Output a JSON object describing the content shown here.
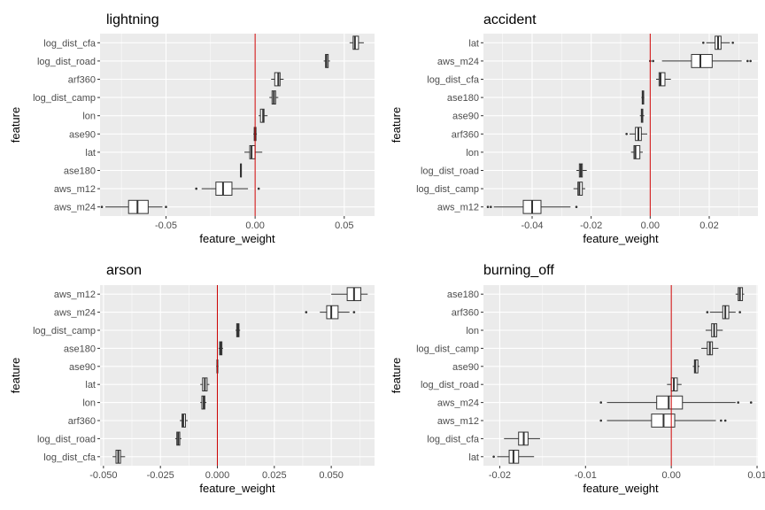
{
  "colors": {
    "panel_bg": "#ebebeb",
    "grid": "#ffffff",
    "zero_line": "#cc0000",
    "box_fill": "#ffffff",
    "box_stroke": "#333333"
  },
  "chart_data": [
    {
      "type": "boxplot",
      "title": "lightning",
      "xlabel": "feature_weight",
      "ylabel": "feature",
      "xlim": [
        -0.087,
        0.067
      ],
      "xticks": [
        -0.05,
        0.0,
        0.05
      ],
      "xtick_labels": [
        "-0.05",
        "0.00",
        "0.05"
      ],
      "zero_line": 0,
      "categories": [
        "log_dist_cfa",
        "log_dist_road",
        "arf360",
        "log_dist_camp",
        "lon",
        "ase90",
        "lat",
        "ase180",
        "aws_m12",
        "aws_m24"
      ],
      "boxes": [
        {
          "min": 0.053,
          "q1": 0.055,
          "median": 0.056,
          "q3": 0.058,
          "max": 0.061,
          "outliers": []
        },
        {
          "min": 0.0385,
          "q1": 0.0395,
          "median": 0.04,
          "q3": 0.041,
          "max": 0.042,
          "outliers": []
        },
        {
          "min": 0.009,
          "q1": 0.011,
          "median": 0.013,
          "q3": 0.014,
          "max": 0.016,
          "outliers": []
        },
        {
          "min": 0.008,
          "q1": 0.0095,
          "median": 0.0105,
          "q3": 0.0115,
          "max": 0.013,
          "outliers": []
        },
        {
          "min": 0.002,
          "q1": 0.003,
          "median": 0.0045,
          "q3": 0.005,
          "max": 0.007,
          "outliers": []
        },
        {
          "min": -0.001,
          "q1": -0.0005,
          "median": 0.0,
          "q3": 0.0005,
          "max": 0.001,
          "outliers": []
        },
        {
          "min": -0.006,
          "q1": -0.003,
          "median": -0.002,
          "q3": 0.0,
          "max": 0.004,
          "outliers": []
        },
        {
          "min": -0.0085,
          "q1": -0.0082,
          "median": -0.008,
          "q3": -0.0078,
          "max": -0.0075,
          "outliers": []
        },
        {
          "min": -0.03,
          "q1": -0.022,
          "median": -0.018,
          "q3": -0.013,
          "max": -0.004,
          "outliers": [
            -0.033,
            0.002
          ]
        },
        {
          "min": -0.084,
          "q1": -0.071,
          "median": -0.066,
          "q3": -0.06,
          "max": -0.052,
          "outliers": [
            -0.086,
            -0.05
          ]
        }
      ]
    },
    {
      "type": "boxplot",
      "title": "accident",
      "xlabel": "feature_weight",
      "ylabel": "feature",
      "xlim": [
        -0.0565,
        0.0365
      ],
      "xticks": [
        -0.04,
        -0.02,
        0.0,
        0.02
      ],
      "xtick_labels": [
        "-0.04",
        "-0.02",
        "0.00",
        "0.02"
      ],
      "zero_line": 0,
      "categories": [
        "lat",
        "aws_m24",
        "log_dist_cfa",
        "ase180",
        "ase90",
        "arf360",
        "lon",
        "log_dist_road",
        "log_dist_camp",
        "aws_m12"
      ],
      "boxes": [
        {
          "min": 0.019,
          "q1": 0.022,
          "median": 0.023,
          "q3": 0.024,
          "max": 0.027,
          "outliers": [
            0.018,
            0.028
          ]
        },
        {
          "min": 0.004,
          "q1": 0.014,
          "median": 0.017,
          "q3": 0.021,
          "max": 0.031,
          "outliers": [
            0.0,
            0.001,
            0.033,
            0.034
          ]
        },
        {
          "min": 0.002,
          "q1": 0.003,
          "median": 0.0035,
          "q3": 0.005,
          "max": 0.007,
          "outliers": []
        },
        {
          "min": -0.003,
          "q1": -0.0027,
          "median": -0.0025,
          "q3": -0.0022,
          "max": -0.002,
          "outliers": []
        },
        {
          "min": -0.0035,
          "q1": -0.003,
          "median": -0.0028,
          "q3": -0.0025,
          "max": -0.002,
          "outliers": []
        },
        {
          "min": -0.007,
          "q1": -0.005,
          "median": -0.004,
          "q3": -0.003,
          "max": -0.001,
          "outliers": [
            -0.008
          ]
        },
        {
          "min": -0.0065,
          "q1": -0.0055,
          "median": -0.005,
          "q3": -0.0035,
          "max": -0.0025,
          "outliers": []
        },
        {
          "min": -0.025,
          "q1": -0.024,
          "median": -0.0235,
          "q3": -0.023,
          "max": -0.0215,
          "outliers": []
        },
        {
          "min": -0.026,
          "q1": -0.0245,
          "median": -0.024,
          "q3": -0.023,
          "max": -0.022,
          "outliers": []
        },
        {
          "min": -0.053,
          "q1": -0.043,
          "median": -0.04,
          "q3": -0.037,
          "max": -0.027,
          "outliers": [
            -0.055,
            -0.054,
            -0.025
          ]
        }
      ]
    },
    {
      "type": "boxplot",
      "title": "arson",
      "xlabel": "feature_weight",
      "ylabel": "feature",
      "xlim": [
        -0.0515,
        0.069
      ],
      "xticks": [
        -0.05,
        -0.025,
        0.0,
        0.025,
        0.05
      ],
      "xtick_labels": [
        "-0.050",
        "-0.025",
        "0.000",
        "0.025",
        "0.050"
      ],
      "zero_line": 0,
      "categories": [
        "aws_m12",
        "aws_m24",
        "log_dist_camp",
        "ase180",
        "ase90",
        "lat",
        "lon",
        "arf360",
        "log_dist_road",
        "log_dist_cfa"
      ],
      "boxes": [
        {
          "min": 0.05,
          "q1": 0.057,
          "median": 0.06,
          "q3": 0.063,
          "max": 0.066,
          "outliers": []
        },
        {
          "min": 0.045,
          "q1": 0.048,
          "median": 0.05,
          "q3": 0.053,
          "max": 0.058,
          "outliers": [
            0.039,
            0.06
          ]
        },
        {
          "min": 0.008,
          "q1": 0.0085,
          "median": 0.009,
          "q3": 0.0095,
          "max": 0.01,
          "outliers": []
        },
        {
          "min": 0.0005,
          "q1": 0.001,
          "median": 0.0015,
          "q3": 0.002,
          "max": 0.0025,
          "outliers": []
        },
        {
          "min": -0.0005,
          "q1": -0.0002,
          "median": 0.0,
          "q3": 0.0002,
          "max": 0.0005,
          "outliers": []
        },
        {
          "min": -0.0075,
          "q1": -0.0065,
          "median": -0.0055,
          "q3": -0.0045,
          "max": -0.0035,
          "outliers": []
        },
        {
          "min": -0.0075,
          "q1": -0.0068,
          "median": -0.006,
          "q3": -0.0055,
          "max": -0.0048,
          "outliers": []
        },
        {
          "min": -0.0165,
          "q1": -0.0155,
          "median": -0.015,
          "q3": -0.014,
          "max": -0.013,
          "outliers": []
        },
        {
          "min": -0.0185,
          "q1": -0.0178,
          "median": -0.0172,
          "q3": -0.0165,
          "max": -0.0158,
          "outliers": []
        },
        {
          "min": -0.046,
          "q1": -0.0445,
          "median": -0.0435,
          "q3": -0.0425,
          "max": -0.0405,
          "outliers": []
        }
      ]
    },
    {
      "type": "boxplot",
      "title": "burning_off",
      "xlabel": "feature_weight",
      "ylabel": "feature",
      "xlim": [
        -0.0219,
        0.0101
      ],
      "xticks": [
        -0.02,
        -0.01,
        0.0,
        0.01
      ],
      "xtick_labels": [
        "-0.02",
        "-0.01",
        "0.00",
        "0.01"
      ],
      "zero_line": 0,
      "categories": [
        "ase180",
        "arf360",
        "lon",
        "log_dist_camp",
        "ase90",
        "log_dist_road",
        "aws_m24",
        "aws_m12",
        "log_dist_cfa",
        "lat"
      ],
      "boxes": [
        {
          "min": 0.0075,
          "q1": 0.0078,
          "median": 0.008,
          "q3": 0.0083,
          "max": 0.0085,
          "outliers": []
        },
        {
          "min": 0.0045,
          "q1": 0.006,
          "median": 0.0063,
          "q3": 0.0067,
          "max": 0.0075,
          "outliers": [
            0.0042,
            0.008
          ]
        },
        {
          "min": 0.004,
          "q1": 0.0047,
          "median": 0.005,
          "q3": 0.0053,
          "max": 0.006,
          "outliers": []
        },
        {
          "min": 0.0035,
          "q1": 0.0042,
          "median": 0.0045,
          "q3": 0.0048,
          "max": 0.0055,
          "outliers": []
        },
        {
          "min": 0.0025,
          "q1": 0.0027,
          "median": 0.0028,
          "q3": 0.0031,
          "max": 0.0033,
          "outliers": []
        },
        {
          "min": -0.0005,
          "q1": 0.0,
          "median": 0.0003,
          "q3": 0.0007,
          "max": 0.0012,
          "outliers": []
        },
        {
          "min": -0.0075,
          "q1": -0.0017,
          "median": -0.0003,
          "q3": 0.0013,
          "max": 0.0075,
          "outliers": [
            -0.0082,
            0.0078,
            0.0093
          ]
        },
        {
          "min": -0.0075,
          "q1": -0.0023,
          "median": -0.0009,
          "q3": 0.0004,
          "max": 0.0052,
          "outliers": [
            -0.0082,
            0.0058,
            0.0063
          ]
        },
        {
          "min": -0.0195,
          "q1": -0.0178,
          "median": -0.0172,
          "q3": -0.0167,
          "max": -0.0153,
          "outliers": []
        },
        {
          "min": -0.0203,
          "q1": -0.0189,
          "median": -0.0184,
          "q3": -0.0178,
          "max": -0.016,
          "outliers": [
            -0.0207
          ]
        }
      ]
    }
  ]
}
